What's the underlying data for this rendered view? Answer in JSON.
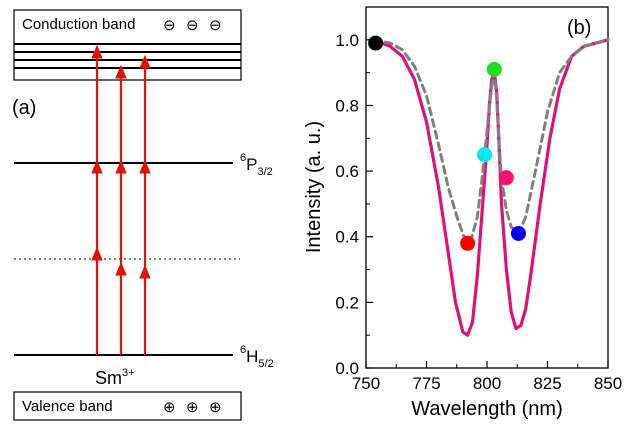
{
  "panel_a": {
    "label": "(a)",
    "conduction_band_label": "Conduction band",
    "valence_band_label": "Valence band",
    "level_upper_label": "6P3/2",
    "level_upper_sup": "6",
    "level_upper_main": "P",
    "level_upper_sub": "3/2",
    "level_ground_sup": "6",
    "level_ground_main": "H",
    "level_ground_sub": "5/2",
    "ion_main": "Sm",
    "ion_sup": "3+",
    "electron_symbol": "⊖",
    "hole_symbol": "⊕",
    "arrow_color": "#e01010"
  },
  "panel_b": {
    "label": "(b)",
    "curve_color": "#e0107a",
    "dash_color": "#808080"
  },
  "chart_data": {
    "type": "line",
    "xlabel": "Wavelength (nm)",
    "ylabel": "Intensity (a. u.)",
    "xlim": [
      750,
      850
    ],
    "ylim": [
      0.0,
      1.1
    ],
    "xticks": [
      750,
      775,
      800,
      825,
      850
    ],
    "yticks": [
      0.0,
      0.2,
      0.4,
      0.6,
      0.8,
      1.0
    ],
    "xtick_labels": [
      "750",
      "775",
      "800",
      "825",
      "850"
    ],
    "ytick_labels": [
      "0.0",
      "0.2",
      "0.4",
      "0.6",
      "0.8",
      "1.0"
    ],
    "series": [
      {
        "style": "solid",
        "color": "#e0107a",
        "x": [
          753,
          760,
          765,
          770,
          775,
          780,
          784,
          787,
          790,
          792,
          794,
          796,
          798,
          800,
          801,
          802,
          803,
          804,
          805,
          806,
          808,
          810,
          812,
          814,
          816,
          818,
          822,
          826,
          830,
          835,
          840,
          845,
          850
        ],
        "y": [
          1.0,
          0.98,
          0.95,
          0.88,
          0.75,
          0.55,
          0.35,
          0.2,
          0.11,
          0.1,
          0.14,
          0.28,
          0.48,
          0.68,
          0.8,
          0.88,
          0.9,
          0.84,
          0.68,
          0.5,
          0.3,
          0.17,
          0.12,
          0.13,
          0.18,
          0.28,
          0.5,
          0.7,
          0.85,
          0.95,
          0.98,
          0.99,
          1.0
        ]
      },
      {
        "style": "dashed",
        "color": "#808080",
        "x": [
          753,
          760,
          765,
          770,
          775,
          780,
          784,
          788,
          791,
          793,
          796,
          798,
          800,
          801,
          802,
          803,
          804,
          805,
          806,
          808,
          810,
          813,
          816,
          820,
          825,
          830,
          835,
          840,
          845,
          850
        ],
        "y": [
          1.0,
          0.99,
          0.97,
          0.92,
          0.83,
          0.68,
          0.55,
          0.45,
          0.39,
          0.38,
          0.46,
          0.58,
          0.72,
          0.8,
          0.86,
          0.9,
          0.82,
          0.68,
          0.58,
          0.48,
          0.43,
          0.41,
          0.46,
          0.6,
          0.78,
          0.9,
          0.95,
          0.98,
          0.99,
          1.0
        ]
      }
    ],
    "markers": [
      {
        "x": 754,
        "y": 0.99,
        "color": "#000000"
      },
      {
        "x": 792,
        "y": 0.38,
        "color": "#ff0000"
      },
      {
        "x": 799,
        "y": 0.65,
        "color": "#00e5ee"
      },
      {
        "x": 803,
        "y": 0.91,
        "color": "#22dd22"
      },
      {
        "x": 808,
        "y": 0.58,
        "color": "#ff1070"
      },
      {
        "x": 813,
        "y": 0.41,
        "color": "#0000ff"
      }
    ]
  }
}
